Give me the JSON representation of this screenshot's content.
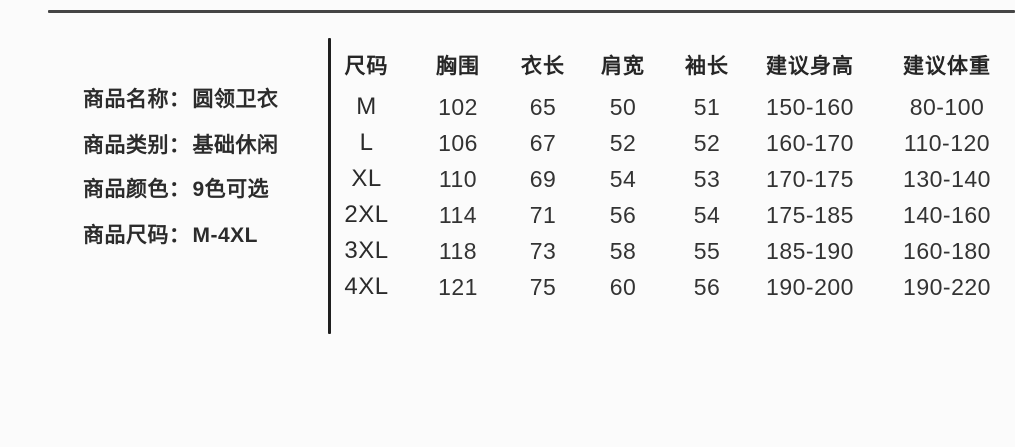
{
  "page": {
    "background_color": "#fbfbfb",
    "text_color": "#2d2d2d",
    "rule_color": "#454545",
    "divider_color": "#1f1f1f"
  },
  "product_info": {
    "items": [
      {
        "label": "商品名称：",
        "value": "圆领卫衣"
      },
      {
        "label": "商品类别：",
        "value": "基础休闲"
      },
      {
        "label": "商品颜色：",
        "value": "9色可选"
      },
      {
        "label": "商品尺码：",
        "value": "M-4XL"
      }
    ]
  },
  "chart_data": {
    "type": "table",
    "title": "",
    "headers": [
      "尺码",
      "胸围",
      "衣长",
      "肩宽",
      "袖长",
      "建议身高",
      "建议体重"
    ],
    "rows": [
      [
        "M",
        "102",
        "65",
        "50",
        "51",
        "150-160",
        "80-100"
      ],
      [
        "L",
        "106",
        "67",
        "52",
        "52",
        "160-170",
        "110-120"
      ],
      [
        "XL",
        "110",
        "69",
        "54",
        "53",
        "170-175",
        "130-140"
      ],
      [
        "2XL",
        "114",
        "71",
        "56",
        "54",
        "175-185",
        "140-160"
      ],
      [
        "3XL",
        "118",
        "73",
        "58",
        "55",
        "185-190",
        "160-180"
      ],
      [
        "4XL",
        "121",
        "75",
        "60",
        "56",
        "190-200",
        "190-220"
      ]
    ]
  }
}
